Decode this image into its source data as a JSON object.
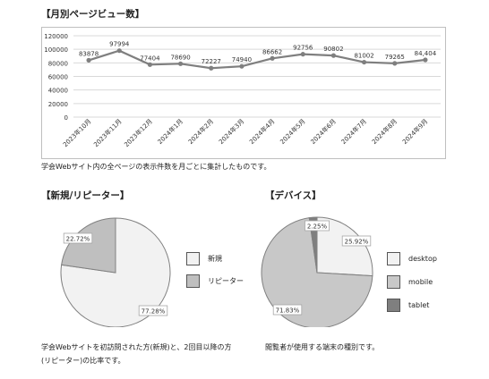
{
  "headings": {
    "monthly": "【月別ページビュー数】",
    "new_returning": "【新規/リピーター】",
    "devices": "【デバイス】"
  },
  "notes": {
    "monthly": "学会Webサイト内の全ページの表示件数を月ごとに集計したものです。",
    "new_returning_line1": "学会Webサイトを初訪問された方(新規)と、2回目以降の方",
    "new_returning_line2": "(リピーター)の比率です。",
    "devices": "閲覧者が使用する端末の種別です。"
  },
  "colors": {
    "line": "#7f7f7f",
    "grid": "#d9d9d9",
    "new": "#f2f2f2",
    "repeater": "#bfbfbf",
    "desktop": "#f2f2f2",
    "mobile": "#c8c8c8",
    "tablet": "#7f7f7f",
    "pie_stroke": "#808080"
  },
  "chart_data": [
    {
      "type": "line",
      "categories": [
        "2023年10月",
        "2023年11月",
        "2023年12月",
        "2024年1月",
        "2024年2月",
        "2024年3月",
        "2024年4月",
        "2024年5月",
        "2024年6月",
        "2024年7月",
        "2024年8月",
        "2024年9月"
      ],
      "values": [
        83878,
        97994,
        77404,
        78690,
        72227,
        74940,
        86662,
        92756,
        90802,
        81002,
        79265,
        84404
      ],
      "data_labels": [
        "83878",
        "97994",
        "77404",
        "78690",
        "72227",
        "74940",
        "86662",
        "92756",
        "90802",
        "81002",
        "79265",
        "84,404"
      ],
      "y_ticks": [
        "0",
        "20000",
        "40000",
        "60000",
        "80000",
        "100000",
        "120000"
      ],
      "ylim": [
        0,
        120000
      ],
      "grid": true,
      "legend": "none"
    },
    {
      "type": "pie",
      "slices": [
        {
          "name": "新規",
          "value": 77.28,
          "label": "77.28%",
          "color": "#f2f2f2"
        },
        {
          "name": "リピーター",
          "value": 22.72,
          "label": "22.72%",
          "color": "#bfbfbf"
        }
      ],
      "legend": "right"
    },
    {
      "type": "pie",
      "slices": [
        {
          "name": "desktop",
          "value": 25.92,
          "label": "25.92%",
          "color": "#f2f2f2"
        },
        {
          "name": "mobile",
          "value": 71.83,
          "label": "71.83%",
          "color": "#c8c8c8"
        },
        {
          "name": "tablet",
          "value": 2.25,
          "label": "2.25%",
          "color": "#7f7f7f"
        }
      ],
      "legend": "right"
    }
  ]
}
